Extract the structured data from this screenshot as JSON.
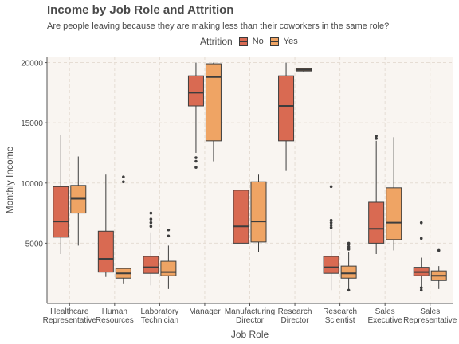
{
  "chart_data": {
    "type": "boxplot",
    "title": "Income by Job Role and Attrition",
    "subtitle": "Are people leaving because they are making less than their coworkers in the same role?",
    "xlabel": "Job Role",
    "ylabel": "Monthly Income",
    "ylim": [
      0,
      20500
    ],
    "yticks": [
      5000,
      10000,
      15000,
      20000
    ],
    "grid": true,
    "legend": {
      "title": "Attrition",
      "position": "top",
      "entries": [
        "No",
        "Yes"
      ]
    },
    "colors": {
      "No": "#d96a52",
      "Yes": "#efa464",
      "background": "#f9f5f1",
      "grid": "#e6ddd4"
    },
    "categories": [
      [
        "Healthcare",
        "Representative"
      ],
      [
        "Human",
        "Resources"
      ],
      [
        "Laboratory",
        "Technician"
      ],
      [
        "Manager"
      ],
      [
        "Manufacturing",
        "Director"
      ],
      [
        "Research",
        "Director"
      ],
      [
        "Research",
        "Scientist"
      ],
      [
        "Sales",
        "Executive"
      ],
      [
        "Sales",
        "Representative"
      ]
    ],
    "series": [
      {
        "name": "No",
        "boxes": [
          {
            "min": 4100,
            "q1": 5500,
            "median": 6800,
            "q3": 9700,
            "max": 14000,
            "outliers": []
          },
          {
            "min": 2200,
            "q1": 2600,
            "median": 3700,
            "q3": 6000,
            "max": 10700,
            "outliers": []
          },
          {
            "min": 1500,
            "q1": 2500,
            "median": 3000,
            "q3": 3900,
            "max": 5900,
            "outliers": [
              6400,
              6700,
              7000,
              7500
            ]
          },
          {
            "min": 12500,
            "q1": 16400,
            "median": 17500,
            "q3": 18900,
            "max": 20000,
            "outliers": [
              11300,
              11800,
              12100
            ]
          },
          {
            "min": 4100,
            "q1": 5000,
            "median": 6400,
            "q3": 9400,
            "max": 14000,
            "outliers": []
          },
          {
            "min": 11000,
            "q1": 13500,
            "median": 16400,
            "q3": 18900,
            "max": 20000,
            "outliers": []
          },
          {
            "min": 1100,
            "q1": 2500,
            "median": 3000,
            "q3": 3900,
            "max": 6100,
            "outliers": [
              6300,
              6500,
              6700,
              6900,
              9700
            ]
          },
          {
            "min": 4100,
            "q1": 5000,
            "median": 6200,
            "q3": 8400,
            "max": 13500,
            "outliers": [
              13700,
              13900
            ]
          },
          {
            "min": 1300,
            "q1": 2300,
            "median": 2600,
            "q3": 3000,
            "max": 3800,
            "outliers": [
              1100,
              1300,
              5400,
              6700
            ]
          }
        ]
      },
      {
        "name": "Yes",
        "boxes": [
          {
            "min": 4800,
            "q1": 7500,
            "median": 8700,
            "q3": 9800,
            "max": 12200,
            "outliers": []
          },
          {
            "min": 1600,
            "q1": 2100,
            "median": 2500,
            "q3": 2900,
            "max": 2900,
            "outliers": [
              10100,
              10500
            ]
          },
          {
            "min": 1200,
            "q1": 2300,
            "median": 2600,
            "q3": 3500,
            "max": 4800,
            "outliers": [
              5600,
              6100
            ]
          },
          {
            "min": 11800,
            "q1": 13500,
            "median": 18800,
            "q3": 19900,
            "max": 20000,
            "outliers": []
          },
          {
            "min": 4300,
            "q1": 5100,
            "median": 6800,
            "q3": 10100,
            "max": 10700,
            "outliers": []
          },
          {
            "min": 19200,
            "q1": 19300,
            "median": 19400,
            "q3": 19500,
            "max": 19500,
            "outliers": []
          },
          {
            "min": 1100,
            "q1": 2100,
            "median": 2500,
            "q3": 3100,
            "max": 4300,
            "outliers": [
              1100,
              4500,
              4700,
              4900,
              5000
            ]
          },
          {
            "min": 4400,
            "q1": 5300,
            "median": 6700,
            "q3": 9600,
            "max": 13800,
            "outliers": []
          },
          {
            "min": 1200,
            "q1": 1900,
            "median": 2300,
            "q3": 2700,
            "max": 3100,
            "outliers": [
              4400
            ]
          }
        ]
      }
    ]
  }
}
